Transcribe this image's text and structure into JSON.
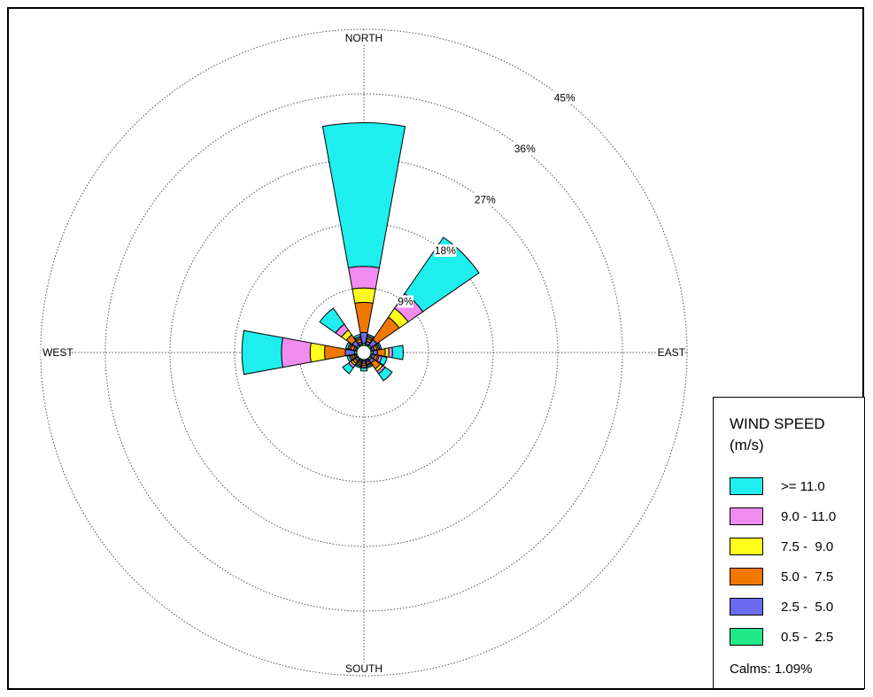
{
  "chart_data": {
    "type": "windrose",
    "title": "",
    "directions": [
      "NORTH",
      "EAST",
      "SOUTH",
      "WEST"
    ],
    "ring_labels": [
      "9%",
      "18%",
      "27%",
      "36%",
      "45%"
    ],
    "ring_values": [
      9,
      18,
      27,
      36,
      45
    ],
    "legend_title_line1": "WIND SPEED",
    "legend_title_line2": "(m/s)",
    "bins": [
      {
        "label": "0.5 -  2.5",
        "color": "#22e88a"
      },
      {
        "label": "2.5 -  5.0",
        "color": "#6b6bf0"
      },
      {
        "label": "5.0 -  7.5",
        "color": "#f07800"
      },
      {
        "label": "7.5 -  9.0",
        "color": "#ffff1e"
      },
      {
        "label": "9.0 - 11.0",
        "color": "#f08cf0"
      },
      {
        "label": ">= 11.0",
        "color": "#1eeeee"
      }
    ],
    "sector_width_deg": 22.5,
    "sectors": [
      {
        "direction": "N",
        "angle": 0,
        "cumulative": [
          0.3,
          1.8,
          6.0,
          8.0,
          11.0,
          31.0
        ]
      },
      {
        "direction": "NNE",
        "angle": 22.5,
        "cumulative": [
          0.2,
          0.6,
          1.0,
          1.2,
          1.4,
          1.6
        ]
      },
      {
        "direction": "NE",
        "angle": 45,
        "cumulative": [
          0.3,
          1.2,
          5.0,
          6.5,
          9.0,
          18.5
        ]
      },
      {
        "direction": "ENE",
        "angle": 67.5,
        "cumulative": [
          0.2,
          0.5,
          0.9,
          1.1,
          1.3,
          1.5
        ]
      },
      {
        "direction": "E",
        "angle": 90,
        "cumulative": [
          0.3,
          0.9,
          2.0,
          2.5,
          3.0,
          4.5
        ]
      },
      {
        "direction": "ESE",
        "angle": 112.5,
        "cumulative": [
          0.2,
          0.6,
          1.0,
          1.2,
          1.6,
          2.3
        ]
      },
      {
        "direction": "SE",
        "angle": 135,
        "cumulative": [
          0.3,
          0.8,
          1.8,
          2.2,
          2.6,
          3.8
        ]
      },
      {
        "direction": "SSE",
        "angle": 157.5,
        "cumulative": [
          0.2,
          0.4,
          0.7,
          0.8,
          1.0,
          1.2
        ]
      },
      {
        "direction": "S",
        "angle": 180,
        "cumulative": [
          0.2,
          0.5,
          0.8,
          1.0,
          1.2,
          1.6
        ]
      },
      {
        "direction": "SSW",
        "angle": 202.5,
        "cumulative": [
          0.2,
          0.4,
          0.6,
          0.8,
          1.0,
          1.2
        ]
      },
      {
        "direction": "SW",
        "angle": 225,
        "cumulative": [
          0.2,
          0.5,
          0.9,
          1.2,
          1.6,
          2.6
        ]
      },
      {
        "direction": "WSW",
        "angle": 247.5,
        "cumulative": [
          0.2,
          0.4,
          0.7,
          0.9,
          1.1,
          1.4
        ]
      },
      {
        "direction": "W",
        "angle": 270,
        "cumulative": [
          0.3,
          1.6,
          4.5,
          6.5,
          10.5,
          16.0
        ]
      },
      {
        "direction": "WNW",
        "angle": 292.5,
        "cumulative": [
          0.2,
          0.5,
          0.9,
          1.1,
          1.3,
          1.6
        ]
      },
      {
        "direction": "NW",
        "angle": 315,
        "cumulative": [
          0.3,
          1.0,
          2.0,
          2.8,
          3.8,
          6.5
        ]
      },
      {
        "direction": "NNW",
        "angle": 337.5,
        "cumulative": [
          0.2,
          0.5,
          0.9,
          1.1,
          1.3,
          1.6
        ]
      }
    ],
    "calms_text": "Calms: 1.09%"
  }
}
